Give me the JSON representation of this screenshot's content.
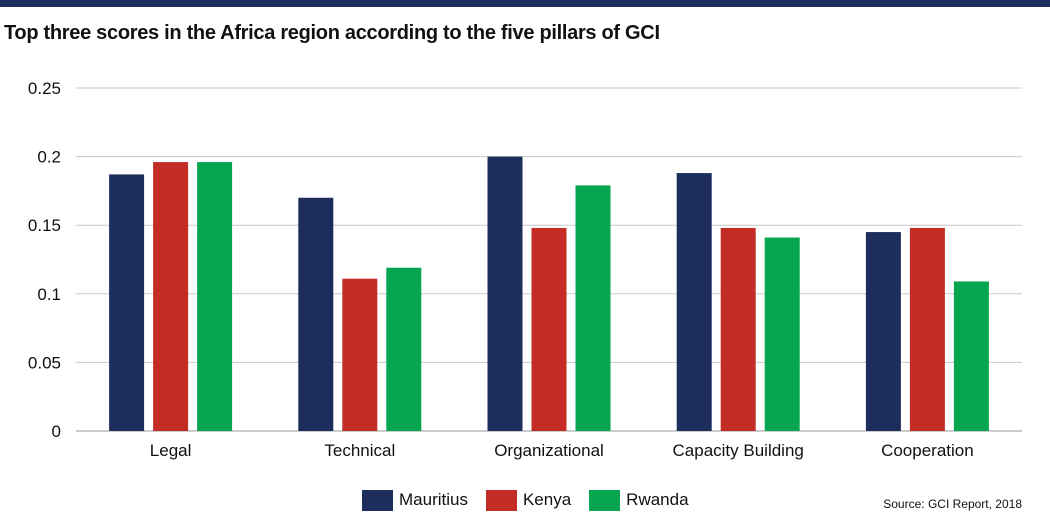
{
  "title": "Top three scores in the Africa region according to the five pillars of GCI",
  "source": "Source: GCI Report, 2018",
  "colors": {
    "header_bar": "#1e2e5c",
    "gridline": "#c8c8c8",
    "axis": "#999999"
  },
  "chart_data": {
    "type": "bar",
    "title": "Top three scores in the Africa region according to the five pillars of GCI",
    "xlabel": "",
    "ylabel": "",
    "categories": [
      "Legal",
      "Technical",
      "Organizational",
      "Capacity Building",
      "Cooperation"
    ],
    "series": [
      {
        "name": "Mauritius",
        "color": "#1e2e5c",
        "values": [
          0.187,
          0.17,
          0.2,
          0.188,
          0.145
        ]
      },
      {
        "name": "Kenya",
        "color": "#c42d26",
        "values": [
          0.196,
          0.111,
          0.148,
          0.148,
          0.148
        ]
      },
      {
        "name": "Rwanda",
        "color": "#06a550",
        "values": [
          0.196,
          0.119,
          0.179,
          0.141,
          0.109
        ]
      }
    ],
    "ylim": [
      0,
      0.25
    ],
    "yticks": [
      0,
      0.05,
      0.1,
      0.15,
      0.2,
      0.25
    ],
    "ytick_labels": [
      "0",
      "0.05",
      "0.1",
      "0.15",
      "0.2",
      "0.25"
    ],
    "grid": true,
    "legend_position": "bottom"
  }
}
